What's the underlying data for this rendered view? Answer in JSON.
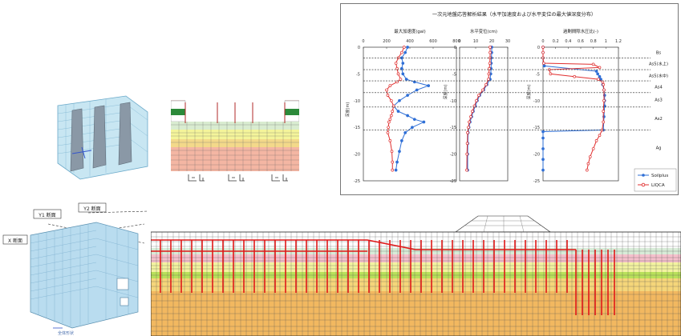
{
  "chart_data": [
    {
      "type": "line",
      "title": "一次元地盤応答解析結果（水平加速度および水平変位の最大値深度分布）",
      "ylabel": "深度(m)",
      "y_ticks": [
        0,
        -5,
        -10,
        -15,
        -20,
        -25
      ],
      "ylim": [
        -25,
        0
      ],
      "strata": [
        "Bs",
        "As5(水上)",
        "As5(水中)",
        "As4",
        "As3",
        "As2",
        "Ag"
      ],
      "legend": [
        "Soilplus",
        "LIQCA"
      ],
      "legend_position": "bottom-right",
      "colors": {
        "Soilplus": "#2f6fd6",
        "LIQCA": "#e03030"
      },
      "panels": [
        {
          "title": "最大加速度(gal)",
          "xlim": [
            0,
            800
          ],
          "x_ticks": [
            0,
            200,
            400,
            600,
            800
          ],
          "series": [
            {
              "name": "Soilplus",
              "x": [
                380,
                360,
                330,
                340,
                330,
                340,
                370,
                440,
                560,
                460,
                380,
                310,
                260,
                300,
                380,
                440,
                520,
                420,
                360,
                330,
                310,
                290,
                280
              ],
              "y": [
                0,
                -1,
                -2,
                -3,
                -4,
                -5,
                -6,
                -6.5,
                -7.2,
                -8,
                -9,
                -10,
                -11,
                -12,
                -12.8,
                -13.5,
                -14,
                -15,
                -16,
                -17.5,
                -19.5,
                -21.5,
                -23
              ]
            },
            {
              "name": "LIQCA",
              "x": [
                350,
                330,
                300,
                280,
                290,
                300,
                320,
                290,
                230,
                200,
                210,
                240,
                260,
                250,
                240,
                230,
                220,
                215,
                210,
                230,
                245,
                250,
                250
              ],
              "y": [
                0,
                -1,
                -2,
                -3,
                -4,
                -5,
                -6,
                -6.5,
                -7.2,
                -8,
                -9,
                -10,
                -11,
                -12,
                -12.8,
                -13.5,
                -14,
                -15,
                -16,
                -17.5,
                -19.5,
                -21.5,
                -23
              ]
            }
          ]
        },
        {
          "title": "水平変位(cm)",
          "xlim": [
            0,
            30
          ],
          "x_ticks": [
            0,
            10,
            20,
            30
          ],
          "series": [
            {
              "name": "Soilplus",
              "x": [
                20,
                20,
                19.8,
                19.7,
                19.6,
                19.4,
                19,
                17,
                15,
                12.5,
                11,
                9.8,
                8.5,
                7.5,
                6.5,
                5.8,
                5.3,
                5.1,
                5.0,
                5.0
              ],
              "y": [
                0,
                -1,
                -2,
                -3,
                -4,
                -5,
                -6,
                -7,
                -8,
                -9,
                -10,
                -11,
                -12,
                -13,
                -14,
                -15,
                -16,
                -18,
                -20,
                -23
              ]
            },
            {
              "name": "LIQCA",
              "x": [
                19,
                19,
                19,
                18.8,
                18.5,
                18.2,
                18,
                16.5,
                14.5,
                12,
                10.5,
                9.2,
                8,
                7,
                6,
                5.5,
                5.0,
                4.8,
                4.6,
                4.5
              ],
              "y": [
                0,
                -1,
                -2,
                -3,
                -4,
                -5,
                -6,
                -7,
                -8,
                -9,
                -10,
                -11,
                -12,
                -13,
                -14,
                -15,
                -16,
                -18,
                -20,
                -23
              ]
            }
          ]
        },
        {
          "title": "過剰間隙水圧比(-)",
          "xlim": [
            0,
            1.2
          ],
          "x_ticks": [
            0,
            0.2,
            0.4,
            0.6,
            0.8,
            1,
            1.2
          ],
          "series": [
            {
              "name": "Soilplus",
              "x": [
                0,
                0,
                0,
                0.01,
                0.02,
                0.85,
                0.87,
                0.9,
                0.92,
                0.95,
                0.97,
                0.98,
                0.98,
                0.98,
                0.97,
                0.96,
                0,
                0,
                0,
                0,
                0
              ],
              "y": [
                0,
                -1,
                -2,
                -3,
                -3.5,
                -4.5,
                -5,
                -5.5,
                -6,
                -7,
                -8,
                -9,
                -10,
                -11,
                -13,
                -15.5,
                -15.8,
                -17,
                -19,
                -21,
                -23
              ]
            },
            {
              "name": "LIQCA",
              "x": [
                0,
                0,
                0,
                0.01,
                0.8,
                0.9,
                0.1,
                0.12,
                0.5,
                0.88,
                0.95,
                0.96,
                0.97,
                0.97,
                0.96,
                0.96,
                0.94,
                0.9,
                0.85,
                0.8,
                0.75,
                0.72,
                0.7
              ],
              "y": [
                0,
                -1,
                -2,
                -3,
                -3.2,
                -3.8,
                -4.2,
                -5,
                -5.5,
                -6,
                -6.5,
                -7,
                -8,
                -10,
                -12,
                -14,
                -15.5,
                -16.5,
                -17.5,
                -19,
                -20.5,
                -21.8,
                -23
              ]
            }
          ]
        }
      ]
    }
  ],
  "lower_model": {
    "labels": [
      "Y1 断面",
      "Y2 断面",
      "X 断面",
      "全体形状"
    ]
  }
}
